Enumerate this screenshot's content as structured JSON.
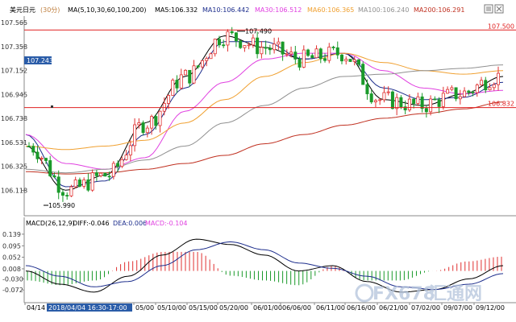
{
  "header": {
    "title": "美元日元",
    "timeframe": "(30分)",
    "ma_label": "MA(5,10,30,60,100,200)",
    "ma_values": [
      {
        "label": "MA5:106.332",
        "color": "#000000"
      },
      {
        "label": "MA10:106.442",
        "color": "#1c2d8c"
      },
      {
        "label": "MA30:106.512",
        "color": "#e040e0"
      },
      {
        "label": "MA60:106.365",
        "color": "#f0a030"
      },
      {
        "label": "MA100:106.240",
        "color": "#909090"
      },
      {
        "label": "MA200:106.291",
        "color": "#c03020"
      }
    ]
  },
  "macd": {
    "label": "MACD(26,12,9)",
    "diff": "DIFF:-0.046",
    "dea": "DEA:0.006",
    "macd": "MACD:-0.104"
  },
  "watermark": {
    "brand": "FX678",
    "cn": "汇通网",
    "color": "#b4c4dc"
  },
  "chart_data": [
    {
      "type": "candlestick",
      "symbol": "美元日元",
      "y_axis_ticks": [
        107.565,
        107.358,
        107.152,
        106.945,
        106.738,
        106.531,
        106.325,
        106.118
      ],
      "ylim": [
        105.9,
        107.62
      ],
      "annotations": [
        {
          "text": "107.490",
          "value": 107.49
        },
        {
          "text": "105.990",
          "value": 105.99
        }
      ],
      "horizontal_lines": [
        {
          "label": "107.500",
          "value": 107.5,
          "color": "#e02020"
        },
        {
          "label": "106.832",
          "value": 106.832,
          "color": "#e02020"
        }
      ],
      "current_price_label": "107.243",
      "x_ticks": [
        "04/14",
        "2018/04/04 16:30-17:00",
        "05/00",
        "05/10/00",
        "05/15/00",
        "05/20/00",
        "06/01/00",
        "06/06/00",
        "06/11/00",
        "06/16/00",
        "06/21/00",
        "07/02/00",
        "09/07/00",
        "09/12/00"
      ],
      "series_colors": {
        "up": "#e03030",
        "down": "#1a9a2a"
      },
      "ma_anchor_values": {
        "MA5": [
          106.5,
          106.12,
          106.25,
          106.7,
          107.1,
          107.45,
          107.35,
          107.25,
          107.3,
          106.9,
          106.85,
          106.95,
          107.1
        ],
        "MA10": [
          106.6,
          106.15,
          106.2,
          106.6,
          107.0,
          107.4,
          107.4,
          107.25,
          107.3,
          107.0,
          106.9,
          106.92,
          107.05
        ],
        "MA30": [
          106.6,
          106.35,
          106.3,
          106.4,
          106.8,
          107.05,
          107.25,
          107.3,
          107.3,
          107.15,
          107.0,
          106.95,
          106.98
        ],
        "MA60": [
          106.5,
          106.47,
          106.5,
          106.55,
          106.7,
          106.9,
          107.1,
          107.22,
          107.3,
          107.22,
          107.15,
          107.12,
          107.15
        ],
        "MA100": [
          106.3,
          106.27,
          106.3,
          106.38,
          106.5,
          106.7,
          106.85,
          107.0,
          107.1,
          107.12,
          107.15,
          107.17,
          107.2
        ],
        "MA200": [
          106.28,
          106.26,
          106.27,
          106.3,
          106.35,
          106.42,
          106.52,
          106.6,
          106.68,
          106.74,
          106.78,
          106.82,
          106.88
        ]
      }
    },
    {
      "type": "macd",
      "y_axis_ticks": [
        0.139,
        0.095,
        0.052,
        0.008,
        -0.03,
        -0.072
      ],
      "y_tick_labels": [
        "0.139",
        "0.095",
        "0.052",
        "0.008",
        "-0.030",
        "-0.072"
      ],
      "ylim": [
        -0.12,
        0.16
      ],
      "diff_anchor": [
        0.0,
        -0.05,
        -0.08,
        -0.02,
        0.06,
        0.12,
        0.1,
        0.06,
        0.0,
        0.02,
        -0.04,
        -0.08,
        -0.07,
        -0.03,
        0.02
      ],
      "dea_anchor": [
        0.02,
        -0.02,
        -0.06,
        -0.04,
        0.02,
        0.08,
        0.11,
        0.08,
        0.03,
        0.01,
        -0.02,
        -0.06,
        -0.07,
        -0.05,
        -0.01
      ],
      "colors": {
        "diff": "#000000",
        "dea": "#1c2d8c",
        "pos": "#e03030",
        "neg": "#1a9a2a"
      }
    }
  ]
}
